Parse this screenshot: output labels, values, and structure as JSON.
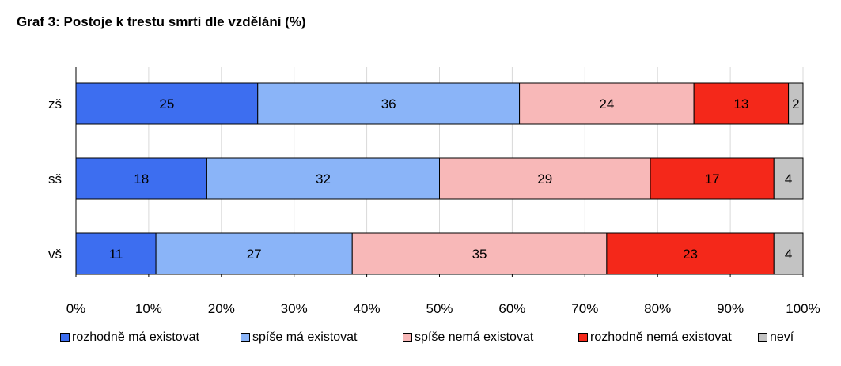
{
  "chart_data": {
    "type": "bar",
    "orientation": "horizontal",
    "stacked": true,
    "title": "Graf 3: Postoje k trestu smrti dle vzdělání (%)",
    "xlabel": "",
    "ylabel": "",
    "xlim": [
      0,
      100
    ],
    "x_ticks": [
      "0%",
      "10%",
      "20%",
      "30%",
      "40%",
      "50%",
      "60%",
      "70%",
      "80%",
      "90%",
      "100%"
    ],
    "categories": [
      "zš",
      "sš",
      "vš"
    ],
    "series": [
      {
        "name": "rozhodně má existovat",
        "color": "#3d6ef0",
        "values": [
          25,
          18,
          11
        ]
      },
      {
        "name": "spíše má existovat",
        "color": "#8ab4f8",
        "values": [
          36,
          32,
          27
        ]
      },
      {
        "name": "spíše nemá existovat",
        "color": "#f8b8b8",
        "values": [
          24,
          29,
          35
        ]
      },
      {
        "name": "rozhodně nemá existovat",
        "color": "#f4281a",
        "values": [
          13,
          17,
          23
        ]
      },
      {
        "name": "neví",
        "color": "#c3c3c3",
        "values": [
          2,
          4,
          4
        ]
      }
    ],
    "grid": true,
    "legend_position": "bottom"
  }
}
